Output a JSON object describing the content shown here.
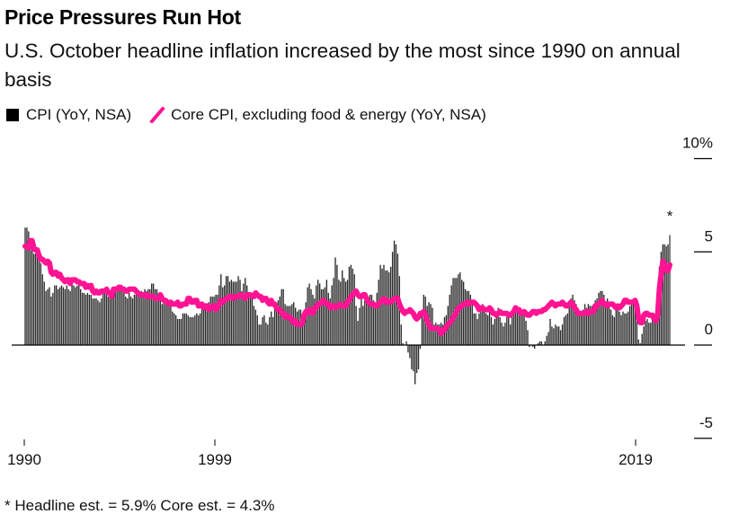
{
  "header": {
    "title": "Price Pressures Run Hot",
    "subtitle": "U.S. October headline inflation increased by the most since 1990 on annual basis"
  },
  "legend": {
    "items": [
      {
        "label": "CPI (YoY, NSA)",
        "type": "bar",
        "color": "#000000"
      },
      {
        "label": "Core CPI, excluding food & energy (YoY, NSA)",
        "type": "line",
        "color": "#ff1493"
      }
    ]
  },
  "footnote": "* Headline est. = 5.9% Core est. = 4.3%",
  "chart_data": {
    "type": "bar",
    "title": "Price Pressures Run Hot",
    "subtitle": "U.S. October headline inflation increased by the most since 1990 on annual basis",
    "xlabel": "",
    "ylabel": "",
    "x_start": "1990-10",
    "x_end": "2021-10",
    "frequency": "monthly",
    "x_tick_labels": [
      "1990",
      "1999",
      "2019"
    ],
    "y_tick_labels": [
      "10%",
      "5",
      "0",
      "-5"
    ],
    "y_ticks": [
      10,
      5,
      0,
      -5
    ],
    "ylim": [
      -5,
      10
    ],
    "grid": false,
    "legend_position": "top-left",
    "annotation": {
      "text": "*",
      "at": "2021-10"
    },
    "colors": {
      "bars": "#2b2b2b",
      "line": "#ff1493",
      "axis": "#000000"
    },
    "series": [
      {
        "name": "CPI (YoY, NSA)",
        "type": "bar",
        "values": [
          6.3,
          6.3,
          6.1,
          5.7,
          5.3,
          4.9,
          4.9,
          4.9,
          4.7,
          4.4,
          3.8,
          3.4,
          2.9,
          3.0,
          3.1,
          2.6,
          2.8,
          3.2,
          3.2,
          3.0,
          3.1,
          3.2,
          3.1,
          3.0,
          3.2,
          3.0,
          2.9,
          3.3,
          3.2,
          3.1,
          3.2,
          3.2,
          3.0,
          2.8,
          2.8,
          2.7,
          2.8,
          2.7,
          2.7,
          2.5,
          2.5,
          2.5,
          2.4,
          2.3,
          2.5,
          2.8,
          2.9,
          3.0,
          2.6,
          2.7,
          2.7,
          2.8,
          2.9,
          2.9,
          3.1,
          3.2,
          3.0,
          2.8,
          2.6,
          2.5,
          2.8,
          2.6,
          2.5,
          2.7,
          2.7,
          2.8,
          2.9,
          2.9,
          2.8,
          3.0,
          2.9,
          3.0,
          3.0,
          3.3,
          3.3,
          3.0,
          3.0,
          2.8,
          2.5,
          2.2,
          2.3,
          2.2,
          2.2,
          2.2,
          2.1,
          1.8,
          1.7,
          1.6,
          1.4,
          1.4,
          1.4,
          1.7,
          1.7,
          1.7,
          1.6,
          1.5,
          1.5,
          1.5,
          1.6,
          1.7,
          1.6,
          1.7,
          2.3,
          2.1,
          2.0,
          2.1,
          2.3,
          2.6,
          2.6,
          2.6,
          2.7,
          2.7,
          3.2,
          3.8,
          3.1,
          3.2,
          3.7,
          3.7,
          3.4,
          3.5,
          3.4,
          3.4,
          3.4,
          3.7,
          3.5,
          2.9,
          3.3,
          3.6,
          3.2,
          2.7,
          2.7,
          2.6,
          2.1,
          1.9,
          1.6,
          1.1,
          1.1,
          1.5,
          1.6,
          1.2,
          1.1,
          1.5,
          1.8,
          1.5,
          2.0,
          2.2,
          2.4,
          2.6,
          3.0,
          3.0,
          2.2,
          2.1,
          2.1,
          2.1,
          2.2,
          2.3,
          2.0,
          1.8,
          1.9,
          1.9,
          1.7,
          1.7,
          2.3,
          3.1,
          3.3,
          3.0,
          2.7,
          2.5,
          3.2,
          3.5,
          3.3,
          3.0,
          3.0,
          3.1,
          3.5,
          2.8,
          2.5,
          3.2,
          3.6,
          4.7,
          4.3,
          3.5,
          3.4,
          4.0,
          3.6,
          3.4,
          3.5,
          4.2,
          4.3,
          4.1,
          3.8,
          2.1,
          1.3,
          2.0,
          2.5,
          2.1,
          2.4,
          2.8,
          2.6,
          2.7,
          2.7,
          2.4,
          2.0,
          2.8,
          3.5,
          4.3,
          4.1,
          4.3,
          4.0,
          4.0,
          3.9,
          4.2,
          5.0,
          5.6,
          5.4,
          4.9,
          3.7,
          1.1,
          0.1,
          0.0,
          0.2,
          -0.4,
          -0.7,
          -1.3,
          -1.4,
          -2.1,
          -1.5,
          -1.3,
          -0.2,
          1.8,
          2.7,
          2.6,
          2.1,
          2.3,
          2.2,
          2.0,
          1.1,
          1.2,
          1.1,
          1.1,
          1.2,
          1.1,
          1.5,
          1.6,
          2.1,
          2.7,
          3.2,
          3.6,
          3.6,
          3.6,
          3.8,
          3.9,
          3.5,
          3.4,
          3.0,
          2.9,
          2.9,
          2.7,
          2.3,
          1.7,
          1.7,
          1.4,
          1.7,
          2.0,
          2.2,
          1.8,
          1.7,
          1.6,
          2.0,
          1.5,
          1.1,
          1.4,
          1.8,
          2.0,
          1.5,
          1.2,
          1.0,
          1.2,
          1.5,
          1.6,
          1.1,
          1.5,
          2.0,
          2.1,
          2.1,
          2.0,
          1.7,
          1.7,
          1.7,
          1.3,
          0.8,
          -0.1,
          0.0,
          -0.1,
          -0.2,
          0.0,
          0.1,
          0.2,
          0.2,
          0.0,
          0.2,
          0.5,
          0.7,
          1.4,
          1.0,
          0.9,
          1.1,
          1.0,
          1.0,
          0.8,
          1.1,
          1.5,
          1.6,
          1.7,
          2.1,
          2.5,
          2.7,
          2.4,
          2.2,
          1.9,
          1.6,
          1.7,
          1.9,
          2.2,
          2.0,
          2.2,
          2.1,
          2.1,
          2.2,
          2.4,
          2.5,
          2.8,
          2.9,
          2.9,
          2.7,
          2.3,
          2.5,
          2.2,
          1.9,
          1.6,
          1.5,
          1.9,
          2.0,
          1.8,
          1.6,
          1.8,
          1.7,
          1.7,
          1.8,
          2.1,
          2.3,
          2.5,
          2.3,
          1.5,
          0.3,
          0.1,
          0.6,
          1.0,
          1.3,
          1.4,
          1.2,
          1.2,
          1.4,
          1.4,
          1.7,
          2.6,
          4.2,
          5.0,
          5.4,
          5.4,
          5.3,
          5.4,
          5.9
        ]
      },
      {
        "name": "Core CPI, excluding food & energy (YoY, NSA)",
        "type": "line",
        "values": [
          5.3,
          5.3,
          5.2,
          5.6,
          5.6,
          5.2,
          5.1,
          5.1,
          4.8,
          4.6,
          4.6,
          4.5,
          4.4,
          4.5,
          4.4,
          3.9,
          3.8,
          3.9,
          3.9,
          3.7,
          3.8,
          3.6,
          3.5,
          3.4,
          3.5,
          3.5,
          3.3,
          3.5,
          3.5,
          3.5,
          3.4,
          3.4,
          3.3,
          3.3,
          3.3,
          3.1,
          3.2,
          3.1,
          3.2,
          2.9,
          2.8,
          2.9,
          2.8,
          2.8,
          2.9,
          2.9,
          2.9,
          3.0,
          2.8,
          2.8,
          2.6,
          3.0,
          3.0,
          3.0,
          3.1,
          3.1,
          3.0,
          3.0,
          2.9,
          2.9,
          3.0,
          3.0,
          3.0,
          3.0,
          2.9,
          2.8,
          2.7,
          2.7,
          2.7,
          2.7,
          2.6,
          2.7,
          2.6,
          2.6,
          2.6,
          2.5,
          2.5,
          2.5,
          2.7,
          2.5,
          2.4,
          2.4,
          2.3,
          2.2,
          2.3,
          2.2,
          2.2,
          2.2,
          2.3,
          2.1,
          2.1,
          2.2,
          2.2,
          2.2,
          2.5,
          2.5,
          2.3,
          2.3,
          2.4,
          2.4,
          2.1,
          2.1,
          2.2,
          2.0,
          2.1,
          2.1,
          1.9,
          2.0,
          2.1,
          2.1,
          1.9,
          2.0,
          2.2,
          2.4,
          2.3,
          2.4,
          2.5,
          2.5,
          2.6,
          2.6,
          2.5,
          2.6,
          2.6,
          2.6,
          2.7,
          2.7,
          2.6,
          2.5,
          2.7,
          2.7,
          2.7,
          2.6,
          2.6,
          2.8,
          2.7,
          2.6,
          2.6,
          2.4,
          2.5,
          2.5,
          2.3,
          2.2,
          2.4,
          2.2,
          2.2,
          2.0,
          1.9,
          1.9,
          1.7,
          1.7,
          1.5,
          1.6,
          1.5,
          1.5,
          1.3,
          1.2,
          1.3,
          1.1,
          1.1,
          1.1,
          1.2,
          1.6,
          1.8,
          1.7,
          1.9,
          1.8,
          1.7,
          2.0,
          2.0,
          2.2,
          2.2,
          2.3,
          2.4,
          2.3,
          2.2,
          2.2,
          2.0,
          2.1,
          2.1,
          2.0,
          2.1,
          2.1,
          2.2,
          2.1,
          2.1,
          2.1,
          2.3,
          2.4,
          2.6,
          2.7,
          2.8,
          2.9,
          2.7,
          2.6,
          2.6,
          2.7,
          2.7,
          2.5,
          2.3,
          2.2,
          2.2,
          2.2,
          2.1,
          2.1,
          2.2,
          2.3,
          2.4,
          2.5,
          2.3,
          2.4,
          2.3,
          2.3,
          2.4,
          2.5,
          2.5,
          2.5,
          2.2,
          2.0,
          1.8,
          1.7,
          1.8,
          1.8,
          1.9,
          1.8,
          1.7,
          1.5,
          1.4,
          1.5,
          1.7,
          1.7,
          1.8,
          1.6,
          1.3,
          1.1,
          0.9,
          0.9,
          0.9,
          0.9,
          0.9,
          0.8,
          0.6,
          0.8,
          0.8,
          1.0,
          1.1,
          1.2,
          1.3,
          1.5,
          1.6,
          1.8,
          2.0,
          2.0,
          2.1,
          2.2,
          2.2,
          2.3,
          2.2,
          2.3,
          2.3,
          2.3,
          2.2,
          2.1,
          1.9,
          2.0,
          2.0,
          1.9,
          1.9,
          1.9,
          2.0,
          1.9,
          1.7,
          1.7,
          1.6,
          1.7,
          1.8,
          1.7,
          1.7,
          1.7,
          1.7,
          1.6,
          1.6,
          1.7,
          1.8,
          2.0,
          1.9,
          1.9,
          1.7,
          1.7,
          1.8,
          1.7,
          1.6,
          1.6,
          1.7,
          1.8,
          1.8,
          1.7,
          1.8,
          1.8,
          1.8,
          1.9,
          1.9,
          2.0,
          2.1,
          2.2,
          2.3,
          2.2,
          2.1,
          2.2,
          2.2,
          2.2,
          2.3,
          2.2,
          2.1,
          2.1,
          2.2,
          2.3,
          2.2,
          2.0,
          1.9,
          1.7,
          1.7,
          1.7,
          1.7,
          1.7,
          1.8,
          1.7,
          1.8,
          1.8,
          1.8,
          2.1,
          2.1,
          2.2,
          2.3,
          2.4,
          2.2,
          2.2,
          2.1,
          2.2,
          2.2,
          2.2,
          2.1,
          2.0,
          2.1,
          2.0,
          2.1,
          2.2,
          2.4,
          2.4,
          2.3,
          2.3,
          2.3,
          2.3,
          2.4,
          2.1,
          1.4,
          1.2,
          1.2,
          1.6,
          1.7,
          1.7,
          1.6,
          1.6,
          1.6,
          1.4,
          1.3,
          1.6,
          3.0,
          3.8,
          4.5,
          4.3,
          4.0,
          4.0,
          4.3
        ]
      }
    ]
  }
}
